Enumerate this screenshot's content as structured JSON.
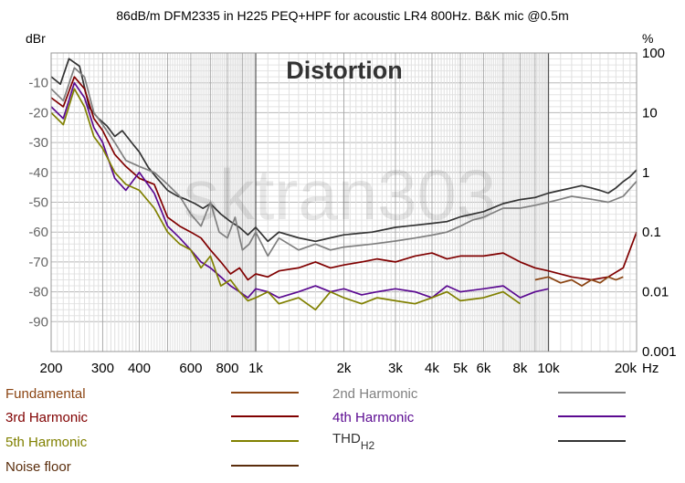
{
  "chart_data": {
    "type": "line",
    "title": "86dB/m DFM2335 in H225 PEQ+HPF for acoustic LR4 800Hz. B&K mic @0.5m",
    "annotation": "Distortion",
    "watermark": "sktran303",
    "xlabel": "",
    "x_unit": "Hz",
    "x_scale": "log",
    "xlim": [
      200,
      20000
    ],
    "x_tick_labels": [
      "200",
      "300",
      "400",
      "600",
      "800",
      "1k",
      "2k",
      "3k",
      "4k",
      "5k",
      "6k",
      "8k",
      "10k",
      "20k"
    ],
    "x_tick_values": [
      200,
      300,
      400,
      600,
      800,
      1000,
      2000,
      3000,
      4000,
      5000,
      6000,
      8000,
      10000,
      20000
    ],
    "ylabel_left": "dBr",
    "ylim_left": [
      -100,
      0
    ],
    "y_left_tick_values": [
      -10,
      -20,
      -30,
      -40,
      -50,
      -60,
      -70,
      -80,
      -90
    ],
    "y_left_tick_labels": [
      "-10",
      "-20",
      "-30",
      "-40",
      "-50",
      "-60",
      "-70",
      "-80",
      "-90"
    ],
    "ylabel_right": "%",
    "y_right_scale": "log",
    "ylim_right": [
      0.001,
      100
    ],
    "y_right_tick_values": [
      100,
      10,
      1,
      0.1,
      0.01,
      0.001
    ],
    "y_right_tick_labels": [
      "100",
      "10",
      "1",
      "0.1",
      "0.01",
      "0.001"
    ],
    "grid": true,
    "legend_position": "bottom",
    "legend": [
      {
        "name": "Fundamental",
        "name_sub": "",
        "color": "#8b4513",
        "label_color": "#8b4513"
      },
      {
        "name": "2nd Harmonic",
        "name_sub": "",
        "color": "#808080",
        "label_color": "#808080"
      },
      {
        "name": "3rd Harmonic",
        "name_sub": "",
        "color": "#800000",
        "label_color": "#800000"
      },
      {
        "name": "4th Harmonic",
        "name_sub": "",
        "color": "#5b0a91",
        "label_color": "#5b0a91"
      },
      {
        "name": "5th Harmonic",
        "name_sub": "",
        "color": "#808000",
        "label_color": "#808000"
      },
      {
        "name": "THD",
        "name_sub": "H2",
        "color": "#333333",
        "label_color": "#333333"
      },
      {
        "name": "Noise floor",
        "name_sub": "",
        "color": "#5a2d0c",
        "label_color": "#5a2d0c"
      }
    ],
    "series": [
      {
        "name": "THD",
        "color": "#333333",
        "axis": "right_percent",
        "x": [
          200,
          215,
          230,
          250,
          270,
          290,
          310,
          330,
          350,
          380,
          400,
          430,
          460,
          500,
          540,
          580,
          620,
          660,
          700,
          760,
          820,
          880,
          940,
          1000,
          1100,
          1200,
          1400,
          1600,
          1800,
          2000,
          2500,
          3000,
          3500,
          4000,
          4500,
          5000,
          5500,
          6000,
          7000,
          8000,
          9000,
          10000,
          11000,
          12000,
          13000,
          14000,
          15000,
          16000,
          17000,
          18000,
          19000,
          20000
        ],
        "y": [
          40,
          30,
          80,
          60,
          12,
          8,
          6,
          4,
          5,
          3,
          2.2,
          1.2,
          0.8,
          0.5,
          0.4,
          0.35,
          0.3,
          0.25,
          0.3,
          0.2,
          0.15,
          0.12,
          0.09,
          0.12,
          0.07,
          0.1,
          0.08,
          0.07,
          0.08,
          0.09,
          0.1,
          0.12,
          0.13,
          0.14,
          0.15,
          0.18,
          0.2,
          0.22,
          0.3,
          0.35,
          0.38,
          0.45,
          0.5,
          0.55,
          0.6,
          0.55,
          0.5,
          0.45,
          0.55,
          0.7,
          0.85,
          1.1
        ]
      },
      {
        "name": "2nd Harmonic",
        "color": "#808080",
        "axis": "left_db",
        "x": [
          200,
          220,
          240,
          260,
          280,
          300,
          330,
          360,
          400,
          450,
          500,
          550,
          600,
          650,
          700,
          750,
          800,
          850,
          900,
          950,
          1000,
          1100,
          1200,
          1400,
          1600,
          1800,
          2000,
          2500,
          3000,
          3500,
          4000,
          4500,
          5000,
          5500,
          6000,
          7000,
          8000,
          9000,
          10000,
          11000,
          12000,
          14000,
          16000,
          18000,
          20000
        ],
        "y": [
          -12,
          -16,
          -5,
          -8,
          -20,
          -24,
          -30,
          -36,
          -38,
          -40,
          -44,
          -48,
          -54,
          -58,
          -50,
          -60,
          -62,
          -55,
          -66,
          -64,
          -60,
          -68,
          -62,
          -66,
          -64,
          -66,
          -65,
          -64,
          -63,
          -62,
          -61,
          -60,
          -58,
          -56,
          -55,
          -52,
          -52,
          -51,
          -50,
          -49,
          -48,
          -49,
          -50,
          -48,
          -43
        ]
      },
      {
        "name": "3rd Harmonic",
        "color": "#800000",
        "axis": "left_db",
        "x": [
          200,
          220,
          240,
          260,
          280,
          300,
          330,
          360,
          400,
          450,
          500,
          550,
          600,
          650,
          700,
          760,
          820,
          880,
          940,
          1000,
          1100,
          1200,
          1400,
          1600,
          1800,
          2000,
          2300,
          2600,
          3000,
          3500,
          4000,
          4500,
          5000,
          6000,
          7000,
          8000,
          9000,
          10000,
          12000,
          14000,
          16000,
          18000,
          20000
        ],
        "y": [
          -15,
          -18,
          -8,
          -12,
          -22,
          -26,
          -34,
          -38,
          -42,
          -44,
          -55,
          -58,
          -60,
          -62,
          -66,
          -70,
          -74,
          -72,
          -76,
          -74,
          -75,
          -73,
          -72,
          -70,
          -72,
          -71,
          -70,
          -69,
          -70,
          -68,
          -67,
          -69,
          -68,
          -68,
          -67,
          -70,
          -72,
          -73,
          -75,
          -76,
          -75,
          -72,
          -60
        ]
      },
      {
        "name": "4th Harmonic",
        "color": "#5b0a91",
        "axis": "left_db",
        "x": [
          200,
          220,
          240,
          260,
          280,
          300,
          330,
          360,
          400,
          450,
          500,
          550,
          600,
          650,
          700,
          760,
          820,
          880,
          940,
          1000,
          1100,
          1200,
          1400,
          1600,
          1800,
          2000,
          2300,
          2600,
          3000,
          3500,
          4000,
          4500,
          5000,
          6000,
          7000,
          8000,
          9000,
          10000
        ],
        "y": [
          -18,
          -22,
          -10,
          -15,
          -25,
          -30,
          -42,
          -46,
          -40,
          -47,
          -58,
          -62,
          -66,
          -70,
          -72,
          -75,
          -78,
          -80,
          -82,
          -79,
          -80,
          -82,
          -80,
          -78,
          -80,
          -79,
          -81,
          -80,
          -79,
          -80,
          -82,
          -78,
          -80,
          -79,
          -78,
          -82,
          -80,
          -79
        ]
      },
      {
        "name": "5th Harmonic",
        "color": "#808000",
        "axis": "left_db",
        "x": [
          200,
          220,
          240,
          260,
          280,
          300,
          330,
          360,
          400,
          450,
          500,
          550,
          600,
          650,
          700,
          760,
          820,
          880,
          940,
          1000,
          1100,
          1200,
          1400,
          1600,
          1800,
          2000,
          2300,
          2600,
          3000,
          3500,
          4000,
          4500,
          5000,
          6000,
          7000,
          8000
        ],
        "y": [
          -20,
          -24,
          -12,
          -18,
          -28,
          -32,
          -40,
          -44,
          -46,
          -52,
          -60,
          -64,
          -66,
          -72,
          -68,
          -78,
          -76,
          -80,
          -83,
          -82,
          -80,
          -84,
          -82,
          -86,
          -80,
          -82,
          -84,
          -82,
          -83,
          -84,
          -82,
          -80,
          -83,
          -82,
          -80,
          -84
        ]
      },
      {
        "name": "Fundamental",
        "color": "#8b4513",
        "axis": "left_db",
        "x": [
          9000,
          10000,
          11000,
          12000,
          13000,
          14000,
          15000,
          16000,
          17000,
          18000
        ],
        "y": [
          -76,
          -75,
          -77,
          -76,
          -78,
          -76,
          -77,
          -75,
          -76,
          -75
        ]
      },
      {
        "name": "Noise floor",
        "color": "#5a2d0c",
        "axis": "left_db",
        "x": [],
        "y": []
      }
    ]
  }
}
